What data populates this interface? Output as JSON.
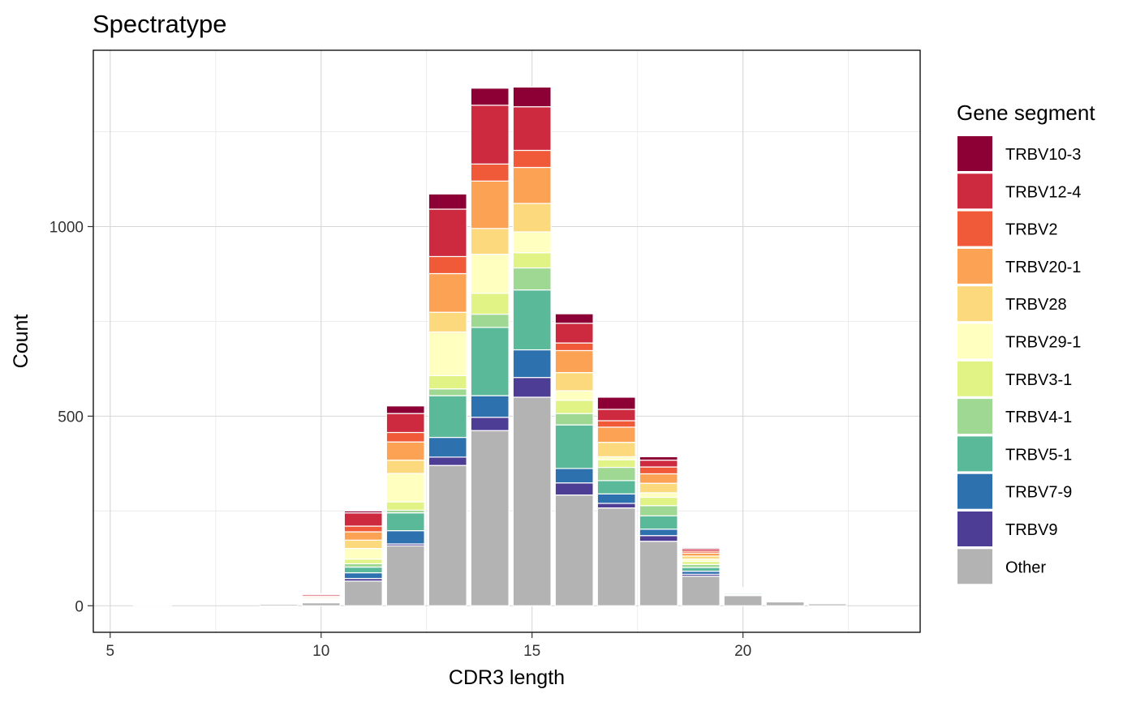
{
  "chart_data": {
    "type": "bar",
    "stacked": true,
    "title": "Spectratype",
    "xlabel": "CDR3 length",
    "ylabel": "Count",
    "x": [
      6,
      9,
      10,
      11,
      12,
      13,
      14,
      15,
      16,
      17,
      18,
      19,
      20,
      21,
      22
    ],
    "xlim": [
      4.6,
      24.2
    ],
    "ylim": [
      -70,
      1465
    ],
    "x_ticks": [
      5,
      10,
      15,
      20
    ],
    "y_ticks": [
      0,
      500,
      1000
    ],
    "grid": true,
    "legend_title": "Gene segment",
    "legend_position": "right",
    "series": [
      {
        "name": "Other",
        "color": "#B3B3B3",
        "values": [
          2,
          4,
          8,
          65,
          158,
          370,
          462,
          550,
          292,
          258,
          170,
          78,
          27,
          10,
          5
        ]
      },
      {
        "name": "TRBV9",
        "color": "#4E3D94",
        "values": [
          0,
          0,
          1,
          7,
          5,
          22,
          35,
          52,
          32,
          12,
          15,
          5,
          1,
          0,
          0
        ]
      },
      {
        "name": "TRBV7-9",
        "color": "#2D72AF",
        "values": [
          0,
          0,
          1,
          15,
          35,
          52,
          57,
          73,
          38,
          25,
          17,
          8,
          2,
          0,
          0
        ]
      },
      {
        "name": "TRBV5-1",
        "color": "#5AB998",
        "values": [
          0,
          0,
          2,
          15,
          47,
          110,
          180,
          158,
          115,
          35,
          35,
          10,
          3,
          0,
          0
        ]
      },
      {
        "name": "TRBV4-1",
        "color": "#9ED893",
        "values": [
          0,
          0,
          1,
          9,
          7,
          18,
          35,
          58,
          30,
          35,
          27,
          8,
          2,
          0,
          0
        ]
      },
      {
        "name": "TRBV3-1",
        "color": "#E0F384",
        "values": [
          0,
          0,
          2,
          12,
          22,
          35,
          55,
          40,
          35,
          20,
          22,
          8,
          2,
          0,
          0
        ]
      },
      {
        "name": "TRBV29-1",
        "color": "#FFFFBF",
        "values": [
          0,
          0,
          3,
          28,
          75,
          115,
          103,
          55,
          25,
          8,
          12,
          6,
          2,
          0,
          0
        ]
      },
      {
        "name": "TRBV28",
        "color": "#FDD97D",
        "values": [
          0,
          0,
          2,
          22,
          35,
          52,
          68,
          75,
          48,
          38,
          25,
          8,
          2,
          0,
          0
        ]
      },
      {
        "name": "TRBV20-1",
        "color": "#FCA254",
        "values": [
          0,
          0,
          3,
          22,
          48,
          102,
          125,
          95,
          58,
          40,
          25,
          8,
          2,
          0,
          0
        ]
      },
      {
        "name": "TRBV2",
        "color": "#F05A39",
        "values": [
          0,
          0,
          3,
          15,
          25,
          45,
          45,
          45,
          20,
          17,
          18,
          5,
          2,
          0,
          0
        ]
      },
      {
        "name": "TRBV12-4",
        "color": "#CD2A40",
        "values": [
          0,
          0,
          4,
          35,
          50,
          125,
          155,
          115,
          52,
          30,
          18,
          6,
          2,
          0,
          0
        ]
      },
      {
        "name": "TRBV10-3",
        "color": "#8C0035",
        "values": [
          0,
          0,
          2,
          5,
          20,
          40,
          45,
          52,
          25,
          32,
          9,
          3,
          1,
          0,
          0
        ]
      }
    ]
  }
}
